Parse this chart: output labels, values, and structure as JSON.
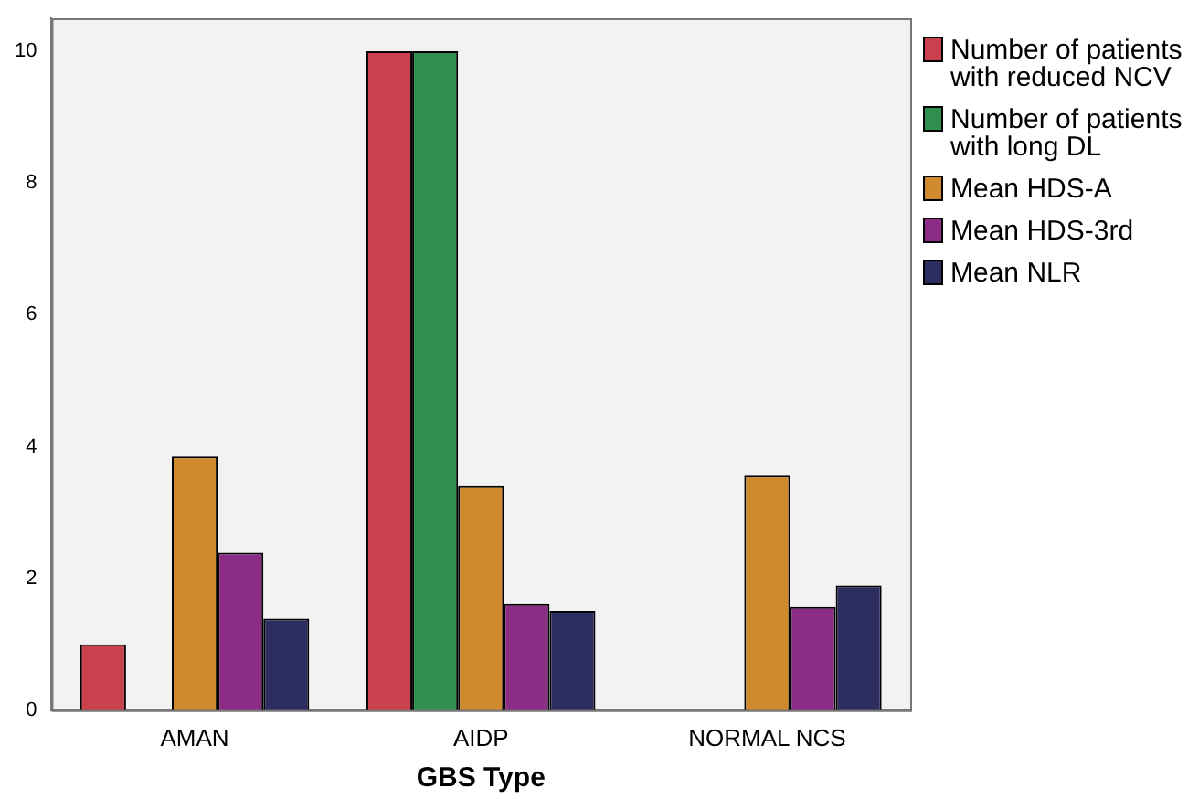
{
  "chart_data": {
    "type": "bar",
    "xlabel": "GBS Type",
    "categories": [
      "AMAN",
      "AIDP",
      "NORMAL NCS"
    ],
    "series": [
      {
        "name": "Number of patients with reduced NCV",
        "color": "#c8414c",
        "values": [
          1,
          10,
          null
        ]
      },
      {
        "name": "Number of patients with long DL",
        "color": "#2f8f4e",
        "values": [
          null,
          10,
          null
        ]
      },
      {
        "name": "Mean HDS-A",
        "color": "#d08a2e",
        "values": [
          3.85,
          3.4,
          3.56
        ]
      },
      {
        "name": "Mean HDS-3rd",
        "color": "#8b2d86",
        "values": [
          2.39,
          1.61,
          1.57
        ]
      },
      {
        "name": "Mean NLR",
        "color": "#2c2c5e",
        "values": [
          1.39,
          1.51,
          1.89
        ]
      }
    ],
    "ylim": [
      0,
      10.5
    ],
    "yticks": [
      0,
      2,
      4,
      6,
      8,
      10
    ],
    "grid": false,
    "legend": "right"
  }
}
